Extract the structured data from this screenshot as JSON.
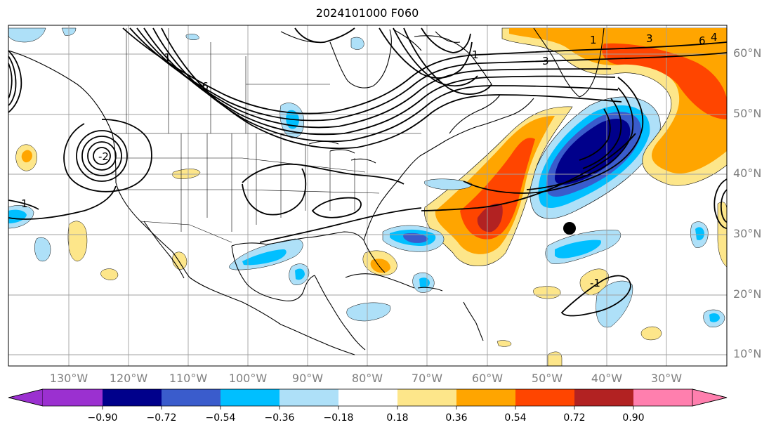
{
  "title": "2024101000 F060",
  "latitude_labels": [
    "60°N",
    "50°N",
    "40°N",
    "30°N",
    "20°N",
    "10°N"
  ],
  "longitude_labels": [
    "130°W",
    "120°W",
    "110°W",
    "100°W",
    "90°W",
    "80°W",
    "70°W",
    "60°W",
    "50°W",
    "40°W",
    "30°W"
  ],
  "contour_labels": [
    "1",
    "3",
    "-6",
    "-1",
    "1",
    "3",
    "6",
    "4",
    "-2",
    "1",
    "-1"
  ],
  "colorbar": {
    "tick_labels": [
      "−0.90",
      "−0.72",
      "−0.54",
      "−0.36",
      "−0.18",
      "0.18",
      "0.36",
      "0.54",
      "0.72",
      "0.90"
    ],
    "colors": [
      "#9b30d0",
      "#00008b",
      "#3a5ccc",
      "#00bfff",
      "#aee0f8",
      "#ffffff",
      "#fde68a",
      "#ffa500",
      "#ff4500",
      "#b22222",
      "#ff7fae"
    ],
    "extend": "both"
  },
  "marker": {
    "lon": -46.5,
    "lat": 31.0
  }
}
